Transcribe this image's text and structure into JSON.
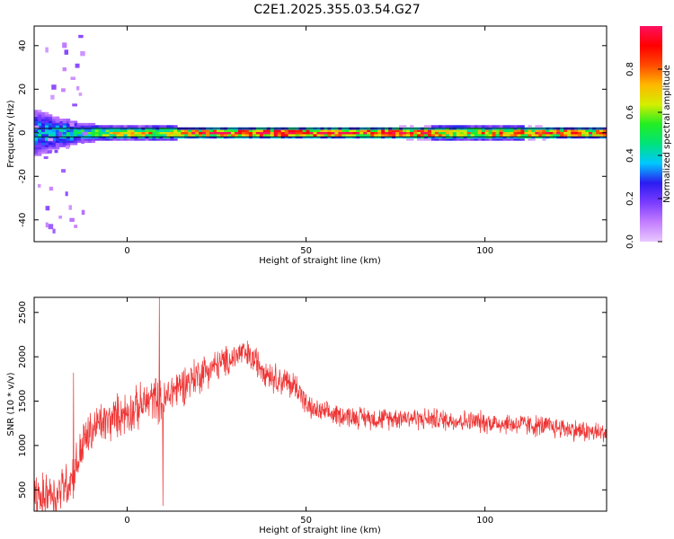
{
  "title": "C2E1.2025.355.03.54.G27",
  "chart_data": [
    {
      "type": "heatmap",
      "xlabel": "Height of straight line (km)",
      "ylabel": "Frequency (Hz)",
      "xlim": [
        -26,
        134
      ],
      "ylim": [
        -50,
        49
      ],
      "xticks": [
        0,
        50,
        100
      ],
      "yticks": [
        -40,
        -20,
        0,
        20,
        40
      ],
      "colorbar": {
        "label": "Normalized spectral amplitude",
        "range": [
          0.0,
          1.0
        ],
        "ticks": [
          "0.0",
          "0.2",
          "0.4",
          "0.6",
          "0.8"
        ],
        "colormap": [
          "#e8c8ff",
          "#c37dff",
          "#7a3cff",
          "#2b1cf0",
          "#00c8ff",
          "#00e37a",
          "#22ee22",
          "#d4ee00",
          "#ffb800",
          "#ff4a00",
          "#ff0000",
          "#ff1060"
        ]
      },
      "band_center_hz": 0,
      "band_halfwidth_hz": 2,
      "ridge_profile": [
        {
          "x": -26,
          "amp": 0.35,
          "width": 9
        },
        {
          "x": -20,
          "amp": 0.4,
          "width": 6
        },
        {
          "x": -14,
          "amp": 0.45,
          "width": 4
        },
        {
          "x": -8,
          "amp": 0.55,
          "width": 3
        },
        {
          "x": -2,
          "amp": 0.65,
          "width": 2.5
        },
        {
          "x": 5,
          "amp": 0.7,
          "width": 2.5
        },
        {
          "x": 10,
          "amp": 0.6,
          "width": 3
        },
        {
          "x": 16,
          "amp": 0.8,
          "width": 2
        },
        {
          "x": 25,
          "amp": 0.9,
          "width": 2
        },
        {
          "x": 40,
          "amp": 0.95,
          "width": 2
        },
        {
          "x": 55,
          "amp": 0.92,
          "width": 2
        },
        {
          "x": 70,
          "amp": 0.9,
          "width": 2
        },
        {
          "x": 85,
          "amp": 0.8,
          "width": 2.5
        },
        {
          "x": 93,
          "amp": 0.6,
          "width": 3
        },
        {
          "x": 100,
          "amp": 0.75,
          "width": 2.5
        },
        {
          "x": 110,
          "amp": 0.8,
          "width": 2.5
        },
        {
          "x": 120,
          "amp": 0.85,
          "width": 2
        },
        {
          "x": 134,
          "amp": 0.8,
          "width": 2
        }
      ]
    },
    {
      "type": "line",
      "xlabel": "Height of straight line (km)",
      "ylabel": "SNR (10 * v/v)",
      "xlim": [
        -26,
        134
      ],
      "ylim": [
        260,
        2670
      ],
      "xticks": [
        0,
        50,
        100
      ],
      "yticks": [
        500,
        1000,
        1500,
        2000,
        2500
      ],
      "color": "#ee3333",
      "series": [
        {
          "x": [
            -26,
            -24,
            -22,
            -20,
            -18,
            -16,
            -14,
            -12,
            -10,
            -8,
            -6,
            -4,
            -2,
            0,
            2,
            4,
            6,
            8,
            10,
            12,
            14,
            16,
            18,
            20,
            22,
            24,
            26,
            28,
            30,
            32,
            34,
            36,
            38,
            40,
            42,
            44,
            46,
            48,
            50,
            52,
            54,
            56,
            58,
            60,
            62,
            64,
            66,
            68,
            70,
            72,
            74,
            76,
            78,
            80,
            82,
            84,
            86,
            88,
            90,
            92,
            94,
            96,
            98,
            100,
            102,
            104,
            106,
            108,
            110,
            112,
            114,
            116,
            118,
            120,
            122,
            124,
            126,
            128,
            130,
            132,
            134
          ],
          "y": [
            450,
            380,
            500,
            420,
            550,
            600,
            800,
            1050,
            1150,
            1250,
            1250,
            1300,
            1350,
            1380,
            1400,
            1450,
            1500,
            1550,
            1450,
            1600,
            1650,
            1700,
            1750,
            1800,
            1850,
            1880,
            1920,
            1950,
            2000,
            2050,
            2000,
            1950,
            1880,
            1800,
            1750,
            1720,
            1680,
            1650,
            1450,
            1400,
            1380,
            1360,
            1350,
            1340,
            1330,
            1320,
            1320,
            1310,
            1300,
            1300,
            1310,
            1320,
            1320,
            1310,
            1300,
            1300,
            1300,
            1290,
            1290,
            1280,
            1280,
            1270,
            1270,
            1260,
            1260,
            1250,
            1250,
            1240,
            1240,
            1230,
            1220,
            1220,
            1210,
            1200,
            1200,
            1180,
            1170,
            1160,
            1150,
            1140,
            1150
          ],
          "noise": [
            200,
            220,
            200,
            200,
            220,
            220,
            220,
            220,
            200,
            200,
            200,
            200,
            200,
            200,
            200,
            200,
            200,
            200,
            200,
            200,
            200,
            180,
            180,
            180,
            160,
            150,
            150,
            140,
            140,
            140,
            140,
            140,
            140,
            140,
            140,
            140,
            140,
            140,
            110,
            100,
            100,
            100,
            100,
            100,
            100,
            100,
            100,
            100,
            100,
            100,
            100,
            100,
            100,
            100,
            100,
            100,
            100,
            100,
            100,
            100,
            100,
            100,
            100,
            100,
            100,
            100,
            100,
            100,
            100,
            100,
            100,
            100,
            100,
            100,
            100,
            100,
            100,
            100,
            100,
            100,
            100
          ]
        }
      ],
      "spikes": [
        {
          "x": -15,
          "y": 1820
        },
        {
          "x": 9,
          "y": 2670
        },
        {
          "x": 10,
          "y": 320
        }
      ]
    }
  ]
}
